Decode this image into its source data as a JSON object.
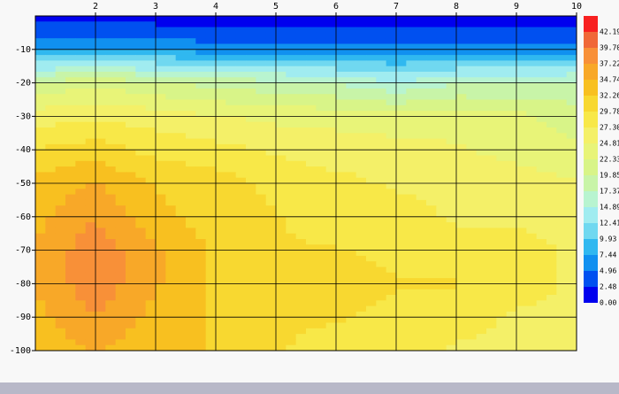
{
  "chart_data": {
    "type": "contour",
    "x": [
      1,
      2,
      3,
      4,
      5,
      6,
      7,
      8,
      9,
      10
    ],
    "y": [
      0,
      -10,
      -20,
      -30,
      -40,
      -50,
      -60,
      -70,
      -80,
      -90,
      -100
    ],
    "z": [
      [
        1,
        1,
        1,
        1,
        1,
        1,
        1,
        1,
        1,
        1
      ],
      [
        7,
        7,
        7,
        6,
        6,
        6,
        6,
        6,
        6,
        6
      ],
      [
        20,
        22,
        20,
        19,
        18,
        17,
        15,
        17,
        17,
        18
      ],
      [
        26,
        27,
        26,
        25,
        24,
        24,
        23,
        24,
        23,
        21
      ],
      [
        30,
        31,
        29,
        28,
        27,
        26,
        26,
        25,
        24,
        23
      ],
      [
        33,
        35,
        32,
        31,
        29,
        28,
        27,
        27,
        26,
        25
      ],
      [
        34,
        37,
        33,
        31,
        30,
        28,
        28,
        27,
        27,
        26
      ],
      [
        35,
        39,
        35,
        32,
        30,
        30,
        29,
        28,
        28,
        27
      ],
      [
        35,
        39,
        35,
        32,
        30,
        31,
        30,
        30,
        28,
        27
      ],
      [
        34,
        37,
        34,
        32,
        30,
        30,
        29,
        28,
        27,
        27
      ],
      [
        33,
        35,
        33,
        32,
        30,
        29,
        28,
        27,
        27,
        27
      ]
    ],
    "xlim": [
      1,
      10
    ],
    "ylim": [
      -100,
      0
    ],
    "xticks": [
      2,
      3,
      4,
      5,
      6,
      7,
      8,
      9,
      10
    ],
    "yticks": [
      -10,
      -20,
      -30,
      -40,
      -50,
      -60,
      -70,
      -80,
      -90,
      -100
    ],
    "grid": true,
    "levels": [
      {
        "value": 0,
        "label": "0.00"
      },
      2.48,
      4.96,
      7.44,
      9.93,
      12.41,
      14.89,
      17.37,
      19.85,
      22.33,
      24.81,
      {
        "value": 27.3,
        "label": "27.30"
      },
      29.78,
      32.26,
      34.74,
      37.22,
      {
        "value": 39.7,
        "label": "39.70"
      },
      42.19
    ],
    "colors": [
      "#0000ee",
      "#0050f0",
      "#1090f0",
      "#30b8f0",
      "#70d8f0",
      "#a0ecf0",
      "#b8f4d0",
      "#c8f4a8",
      "#d8f488",
      "#e8f478",
      "#f4f068",
      "#f8e848",
      "#f8d830",
      "#f8c020",
      "#f8a828",
      "#f89038",
      "#f06838",
      "#f82020"
    ]
  }
}
